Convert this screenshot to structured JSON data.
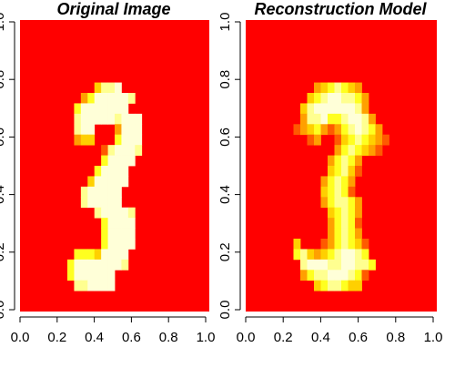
{
  "chart_data": [
    {
      "type": "heatmap",
      "title": "Original Image",
      "xlim": [
        0,
        1
      ],
      "ylim": [
        0,
        1
      ],
      "x_ticks": [
        "0.0",
        "0.2",
        "0.4",
        "0.6",
        "0.8",
        "1.0"
      ],
      "y_ticks": [
        "0.0",
        "0.2",
        "0.4",
        "0.6",
        "0.8",
        "1.0"
      ],
      "grid_size": [
        28,
        28
      ],
      "color_scale": [
        "#ff0000",
        "#ff5a00",
        "#ffa000",
        "#ffd000",
        "#ffff20",
        "#ffff90",
        "#ffffd8"
      ],
      "rows_top_to_bottom": [
        "............................",
        "............................",
        "............................",
        "............................",
        "............................",
        "............................",
        "...........3556.............",
        ".........24666665...........",
        "........46666666............",
        "........5666665666..........",
        "........566...2666..........",
        "........233...4666..........",
        "............156665..........",
        "............46666...........",
        "...........46666............",
        "..........366666............",
        ".........566666.............",
        ".........566666.............",
        "...........566665...........",
        "............46666...........",
        "............46666...........",
        "............46666...........",
        "........44436666............",
        ".......466666665............",
        ".......4666666..............",
        "........556666..............",
        "............................",
        "............................"
      ]
    },
    {
      "type": "heatmap",
      "title": "Reconstruction Model",
      "xlim": [
        0,
        1
      ],
      "ylim": [
        0,
        1
      ],
      "x_ticks": [
        "0.0",
        "0.2",
        "0.4",
        "0.6",
        "0.8",
        "1.0"
      ],
      "y_ticks": [
        "0.0",
        "0.2",
        "0.4",
        "0.6",
        "0.8",
        "1.0"
      ],
      "grid_size": [
        28,
        28
      ],
      "color_scale": [
        "#ff0000",
        "#ff5a00",
        "#ffa000",
        "#ffd000",
        "#ffff20",
        "#ffff90",
        "#ffffd8"
      ],
      "rows_top_to_bottom": [
        "............................",
        "............................",
        "............................",
        "............................",
        "............................",
        "............................",
        "..........2345432............",
        ".........345665542...........",
        "........3566666652...........",
        "........25564456652..........",
        ".......1234212456542.........",
        ".........12..13454321........",
        ".............2454321.........",
        "............24542.............",
        "............34531.............",
        "...........24542..............",
        "...........34541..............",
        "...........245542.............",
        "............34542.............",
        "............24541.............",
        "............24542.............",
        ".......3...1245431............",
        ".......45323456654............",
        "........56665566554...........",
        "........2455666541............",
        "..........3455433..............",
        "............................",
        "............................"
      ]
    }
  ]
}
